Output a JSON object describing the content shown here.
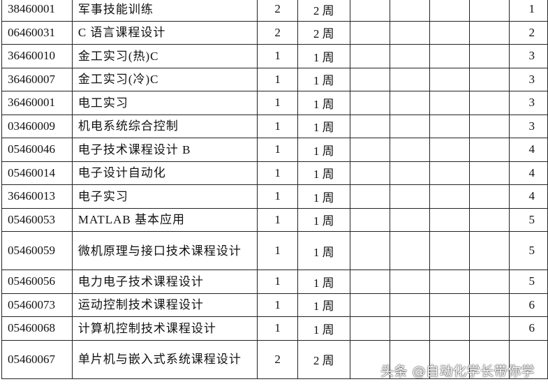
{
  "rows": [
    {
      "code": "38460001",
      "name": "军事技能训练",
      "credits": "2",
      "weeks": "2 周",
      "semester": "1"
    },
    {
      "code": "06460031",
      "name": "C 语言课程设计",
      "credits": "2",
      "weeks": "2 周",
      "semester": "2"
    },
    {
      "code": "36460010",
      "name": "金工实习(热)C",
      "credits": "1",
      "weeks": "1 周",
      "semester": "3"
    },
    {
      "code": "36460007",
      "name": "金工实习(冷)C",
      "credits": "1",
      "weeks": "1 周",
      "semester": "3"
    },
    {
      "code": "36460001",
      "name": "电工实习",
      "credits": "1",
      "weeks": "1 周",
      "semester": "3"
    },
    {
      "code": "03460009",
      "name": "机电系统综合控制",
      "credits": "1",
      "weeks": "1 周",
      "semester": "3"
    },
    {
      "code": "05460046",
      "name": "电子技术课程设计 B",
      "credits": "1",
      "weeks": "1 周",
      "semester": "4"
    },
    {
      "code": "05460014",
      "name": "电子设计自动化",
      "credits": "1",
      "weeks": "1 周",
      "semester": "4"
    },
    {
      "code": "36460013",
      "name": "电子实习",
      "credits": "1",
      "weeks": "1 周",
      "semester": "4"
    },
    {
      "code": "05460053",
      "name": "MATLAB 基本应用",
      "credits": "1",
      "weeks": "1 周",
      "semester": "5"
    },
    {
      "code": "05460059",
      "name": "微机原理与接口技术课程设计",
      "credits": "1",
      "weeks": "1 周",
      "semester": "5"
    },
    {
      "code": "05460056",
      "name": "电力电子技术课程设计",
      "credits": "1",
      "weeks": "1 周",
      "semester": "5"
    },
    {
      "code": "05460073",
      "name": "运动控制技术课程设计",
      "credits": "1",
      "weeks": "1 周",
      "semester": "6"
    },
    {
      "code": "05460068",
      "name": "计算机控制技术课程设计",
      "credits": "1",
      "weeks": "1 周",
      "semester": "6"
    },
    {
      "code": "05460067",
      "name": "单片机与嵌入式系统课程设计",
      "credits": "2",
      "weeks": "2 周",
      "semester": ""
    }
  ],
  "watermark": "头条 @自动化学长带你学"
}
